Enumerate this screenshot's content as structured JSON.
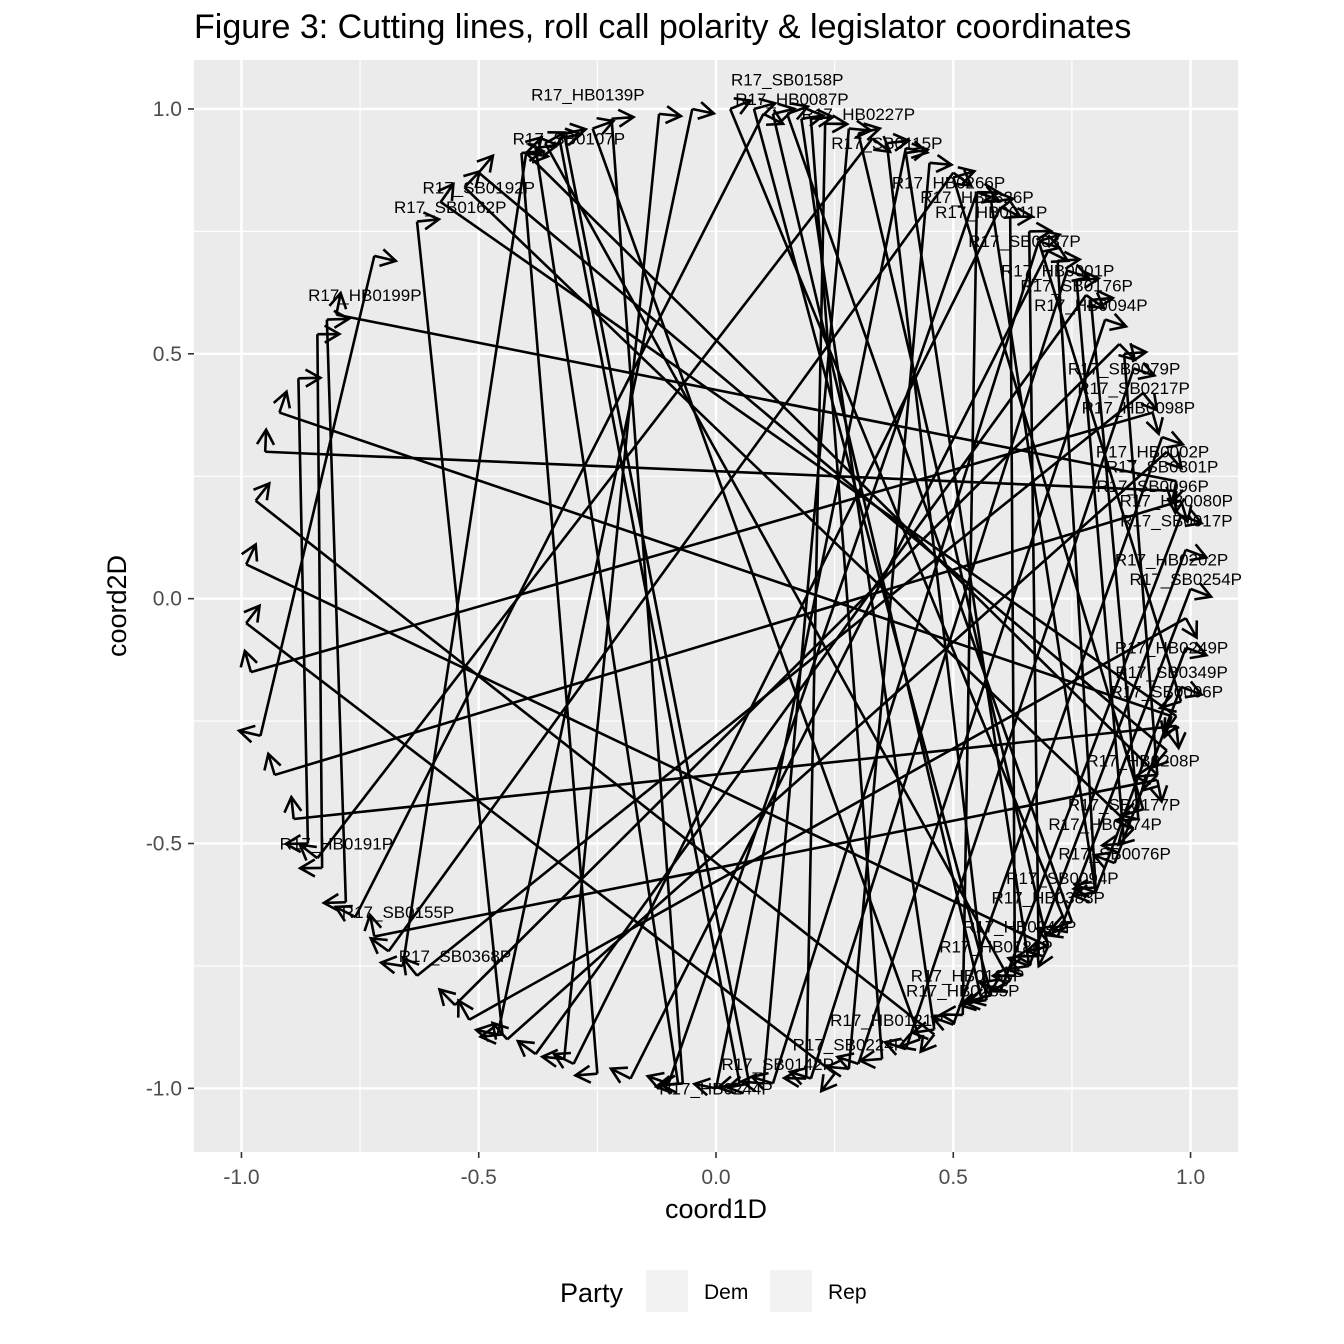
{
  "chart_data": {
    "type": "scatter",
    "title": "Figure 3: Cutting lines, roll call polarity & legislator coordinates",
    "xlabel": "coord1D",
    "ylabel": "coord2D",
    "xlim": [
      -1.1,
      1.1
    ],
    "ylim": [
      -1.13,
      1.1
    ],
    "x_ticks": [
      -1.0,
      -0.5,
      0.0,
      0.5,
      1.0
    ],
    "x_tick_labels": [
      "-1.0",
      "-0.5",
      "0.0",
      "0.5",
      "1.0"
    ],
    "y_ticks": [
      -1.0,
      -0.5,
      0.0,
      0.5,
      1.0
    ],
    "y_tick_labels": [
      "-1.0",
      "-0.5",
      "0.0",
      "0.5",
      "1.0"
    ],
    "grid": true,
    "panel_background": "#ebebeb",
    "grid_color": "#ffffff",
    "line_color": "#000000",
    "legend": {
      "title": "Party",
      "position": "bottom",
      "items": [
        {
          "label": "Dem",
          "color": "#f2f2f2"
        },
        {
          "label": "Rep",
          "color": "#f2f2f2"
        }
      ]
    },
    "cutting_lines": [
      {
        "from": [
          0.15,
          0.99
        ],
        "to": [
          0.75,
          -0.66
        ]
      },
      {
        "from": [
          0.03,
          1.0
        ],
        "to": [
          0.74,
          -0.67
        ]
      },
      {
        "from": [
          -0.38,
          0.92
        ],
        "to": [
          -0.08,
          -0.99
        ]
      },
      {
        "from": [
          -0.33,
          0.94
        ],
        "to": [
          0.05,
          -0.99
        ]
      },
      {
        "from": [
          -0.32,
          0.95
        ],
        "to": [
          0.07,
          -0.99
        ]
      },
      {
        "from": [
          -0.41,
          0.91
        ],
        "to": [
          -0.25,
          -0.97
        ]
      },
      {
        "from": [
          0.2,
          0.98
        ],
        "to": [
          0.35,
          -0.94
        ]
      },
      {
        "from": [
          0.08,
          1.0
        ],
        "to": [
          0.58,
          -0.81
        ]
      },
      {
        "from": [
          0.23,
          0.97
        ],
        "to": [
          0.19,
          -0.98
        ]
      },
      {
        "from": [
          0.28,
          0.96
        ],
        "to": [
          0.1,
          -0.99
        ]
      },
      {
        "from": [
          0.45,
          0.89
        ],
        "to": [
          0.28,
          -0.96
        ]
      },
      {
        "from": [
          0.55,
          0.83
        ],
        "to": [
          0.52,
          -0.85
        ]
      },
      {
        "from": [
          0.62,
          0.78
        ],
        "to": [
          0.63,
          -0.77
        ]
      },
      {
        "from": [
          0.66,
          0.75
        ],
        "to": [
          0.68,
          -0.73
        ]
      },
      {
        "from": [
          0.72,
          0.69
        ],
        "to": [
          0.8,
          -0.59
        ]
      },
      {
        "from": [
          0.76,
          0.65
        ],
        "to": [
          0.86,
          -0.5
        ]
      },
      {
        "from": [
          0.79,
          0.61
        ],
        "to": [
          0.89,
          -0.45
        ]
      },
      {
        "from": [
          0.86,
          0.5
        ],
        "to": [
          0.93,
          -0.36
        ]
      },
      {
        "from": [
          -0.22,
          0.98
        ],
        "to": [
          -0.07,
          -0.99
        ]
      },
      {
        "from": [
          -0.12,
          0.99
        ],
        "to": [
          -0.32,
          -0.94
        ]
      },
      {
        "from": [
          -0.05,
          1.0
        ],
        "to": [
          -0.46,
          -0.89
        ]
      },
      {
        "from": [
          -0.53,
          0.84
        ],
        "to": [
          0.88,
          -0.47
        ]
      },
      {
        "from": [
          -0.5,
          0.87
        ],
        "to": [
          0.95,
          -0.31
        ]
      },
      {
        "from": [
          -0.58,
          0.81
        ],
        "to": [
          0.97,
          -0.24
        ]
      },
      {
        "from": [
          -0.63,
          0.77
        ],
        "to": [
          -0.45,
          -0.89
        ]
      },
      {
        "from": [
          -0.8,
          0.58
        ],
        "to": [
          0.97,
          0.24
        ]
      },
      {
        "from": [
          -0.82,
          0.57
        ],
        "to": [
          -0.78,
          -0.62
        ]
      },
      {
        "from": [
          -0.84,
          0.54
        ],
        "to": [
          -0.83,
          -0.55
        ]
      },
      {
        "from": [
          -0.88,
          0.45
        ],
        "to": [
          -0.86,
          -0.5
        ]
      },
      {
        "from": [
          -0.92,
          0.38
        ],
        "to": [
          0.96,
          -0.24
        ]
      },
      {
        "from": [
          -0.95,
          0.3
        ],
        "to": [
          0.97,
          0.22
        ]
      },
      {
        "from": [
          -0.97,
          0.2
        ],
        "to": [
          0.46,
          -0.89
        ]
      },
      {
        "from": [
          -0.99,
          0.07
        ],
        "to": [
          0.7,
          -0.71
        ]
      },
      {
        "from": [
          -0.99,
          -0.05
        ],
        "to": [
          0.25,
          -0.97
        ]
      },
      {
        "from": [
          -0.98,
          -0.15
        ],
        "to": [
          0.92,
          0.38
        ]
      },
      {
        "from": [
          -0.96,
          -0.28
        ],
        "to": [
          -0.72,
          0.7
        ]
      },
      {
        "from": [
          -0.93,
          -0.36
        ],
        "to": [
          0.98,
          0.2
        ]
      },
      {
        "from": [
          -0.89,
          -0.45
        ],
        "to": [
          0.97,
          -0.26
        ]
      },
      {
        "from": [
          -0.72,
          -0.69
        ],
        "to": [
          0.93,
          -0.37
        ]
      },
      {
        "from": [
          -0.69,
          -0.72
        ],
        "to": [
          0.5,
          0.87
        ]
      },
      {
        "from": [
          -0.63,
          -0.77
        ],
        "to": [
          0.9,
          0.42
        ]
      },
      {
        "from": [
          -0.55,
          -0.83
        ],
        "to": [
          0.85,
          0.52
        ]
      },
      {
        "from": [
          -0.52,
          -0.86
        ],
        "to": [
          0.99,
          -0.04
        ]
      },
      {
        "from": [
          -0.44,
          -0.9
        ],
        "to": [
          0.95,
          0.3
        ]
      },
      {
        "from": [
          -0.38,
          -0.93
        ],
        "to": [
          0.78,
          0.62
        ]
      },
      {
        "from": [
          -0.3,
          -0.95
        ],
        "to": [
          0.6,
          0.8
        ]
      },
      {
        "from": [
          -0.18,
          -0.98
        ],
        "to": [
          0.7,
          0.71
        ]
      },
      {
        "from": [
          -0.1,
          -0.99
        ],
        "to": [
          0.55,
          0.83
        ]
      },
      {
        "from": [
          0.0,
          -1.0
        ],
        "to": [
          0.4,
          0.92
        ]
      },
      {
        "from": [
          0.12,
          -0.99
        ],
        "to": [
          0.68,
          0.73
        ]
      },
      {
        "from": [
          0.2,
          -0.98
        ],
        "to": [
          0.74,
          0.67
        ]
      },
      {
        "from": [
          0.3,
          -0.95
        ],
        "to": [
          0.82,
          0.57
        ]
      },
      {
        "from": [
          0.4,
          -0.92
        ],
        "to": [
          0.88,
          0.47
        ]
      },
      {
        "from": [
          0.5,
          -0.87
        ],
        "to": [
          0.94,
          0.33
        ]
      },
      {
        "from": [
          0.6,
          -0.8
        ],
        "to": [
          0.98,
          0.17
        ]
      },
      {
        "from": [
          0.66,
          -0.75
        ],
        "to": [
          0.99,
          0.1
        ]
      },
      {
        "from": [
          0.72,
          -0.69
        ],
        "to": [
          1.0,
          0.02
        ]
      },
      {
        "from": [
          0.8,
          -0.6
        ],
        "to": [
          0.99,
          -0.1
        ]
      },
      {
        "from": [
          0.84,
          -0.54
        ],
        "to": [
          0.98,
          -0.18
        ]
      },
      {
        "from": [
          -0.4,
          0.91
        ],
        "to": [
          0.93,
          -0.36
        ]
      },
      {
        "from": [
          -0.36,
          0.93
        ],
        "to": [
          0.62,
          -0.78
        ]
      },
      {
        "from": [
          -0.26,
          0.96
        ],
        "to": [
          0.43,
          -0.9
        ]
      },
      {
        "from": [
          -0.84,
          -0.53
        ],
        "to": [
          0.33,
          0.94
        ]
      },
      {
        "from": [
          -0.76,
          -0.65
        ],
        "to": [
          0.1,
          0.99
        ]
      },
      {
        "from": [
          -0.66,
          -0.75
        ],
        "to": [
          -0.4,
          0.91
        ]
      },
      {
        "from": [
          0.36,
          0.93
        ],
        "to": [
          0.57,
          -0.82
        ]
      },
      {
        "from": [
          0.4,
          0.91
        ],
        "to": [
          0.66,
          -0.75
        ]
      },
      {
        "from": [
          0.5,
          0.86
        ],
        "to": [
          0.9,
          -0.43
        ]
      },
      {
        "from": [
          0.58,
          0.81
        ],
        "to": [
          0.8,
          -0.6
        ]
      },
      {
        "from": [
          0.68,
          0.73
        ],
        "to": [
          0.98,
          -0.21
        ]
      },
      {
        "from": [
          0.3,
          0.95
        ],
        "to": [
          0.7,
          -0.71
        ]
      },
      {
        "from": [
          0.12,
          0.99
        ],
        "to": [
          0.56,
          -0.82
        ]
      },
      {
        "from": [
          0.18,
          0.98
        ],
        "to": [
          0.46,
          -0.88
        ]
      }
    ],
    "annotations": [
      {
        "text": "R17_SB0158P",
        "x": 0.15,
        "y": 1.06
      },
      {
        "text": "R17_HB0139P",
        "x": -0.27,
        "y": 1.03
      },
      {
        "text": "R17_HB0087P",
        "x": 0.16,
        "y": 1.02
      },
      {
        "text": "R17_HB0227P",
        "x": 0.3,
        "y": 0.99
      },
      {
        "text": "R17_SB0107P",
        "x": -0.31,
        "y": 0.94
      },
      {
        "text": "R17_SB0115P",
        "x": 0.36,
        "y": 0.93
      },
      {
        "text": "R17_HB0266P",
        "x": 0.49,
        "y": 0.85
      },
      {
        "text": "R17_SB0192P",
        "x": -0.5,
        "y": 0.84
      },
      {
        "text": "R17_HB0326P",
        "x": 0.55,
        "y": 0.82
      },
      {
        "text": "R17_SB0162P",
        "x": -0.56,
        "y": 0.8
      },
      {
        "text": "R17_HB0011P",
        "x": 0.58,
        "y": 0.79
      },
      {
        "text": "R17_SB0037P",
        "x": 0.65,
        "y": 0.73
      },
      {
        "text": "R17_HB0001P",
        "x": 0.72,
        "y": 0.67
      },
      {
        "text": "R17_SB0176P",
        "x": 0.76,
        "y": 0.64
      },
      {
        "text": "R17_HB0094P",
        "x": 0.79,
        "y": 0.6
      },
      {
        "text": "R17_HB0199P",
        "x": -0.74,
        "y": 0.62
      },
      {
        "text": "R17_SB0079P",
        "x": 0.86,
        "y": 0.47
      },
      {
        "text": "R17_SB0217P",
        "x": 0.88,
        "y": 0.43
      },
      {
        "text": "R17_HB0098P",
        "x": 0.89,
        "y": 0.39
      },
      {
        "text": "R17_HB0002P",
        "x": 0.92,
        "y": 0.3
      },
      {
        "text": "R17_SB0301P",
        "x": 0.94,
        "y": 0.27
      },
      {
        "text": "R17_SB0096P",
        "x": 0.92,
        "y": 0.23
      },
      {
        "text": "R17_HB0080P",
        "x": 0.97,
        "y": 0.2
      },
      {
        "text": "R17_SB0017P",
        "x": 0.97,
        "y": 0.16
      },
      {
        "text": "R17_HB0202P",
        "x": 0.96,
        "y": 0.08
      },
      {
        "text": "R17_SB0254P",
        "x": 0.99,
        "y": 0.04
      },
      {
        "text": "R17_HB0249P",
        "x": 0.96,
        "y": -0.1
      },
      {
        "text": "R17_SB0349P",
        "x": 0.96,
        "y": -0.15
      },
      {
        "text": "R17_SB0006P",
        "x": 0.95,
        "y": -0.19
      },
      {
        "text": "R17_HB0208P",
        "x": 0.9,
        "y": -0.33
      },
      {
        "text": "R17_SB0177P",
        "x": 0.86,
        "y": -0.42
      },
      {
        "text": "R17_HB0474P",
        "x": 0.82,
        "y": -0.46
      },
      {
        "text": "R17_SB0076P",
        "x": 0.84,
        "y": -0.52
      },
      {
        "text": "R17_SB0094P",
        "x": 0.73,
        "y": -0.57
      },
      {
        "text": "R17_HB0383P",
        "x": 0.7,
        "y": -0.61
      },
      {
        "text": "R17_HB0244P",
        "x": 0.64,
        "y": -0.67
      },
      {
        "text": "R17_HB0184P",
        "x": 0.59,
        "y": -0.71
      },
      {
        "text": "R17_HB0166P",
        "x": 0.53,
        "y": -0.77
      },
      {
        "text": "R17_HB0285P",
        "x": 0.52,
        "y": -0.8
      },
      {
        "text": "R17_HB0121P",
        "x": 0.36,
        "y": -0.86
      },
      {
        "text": "R17_SB0224P",
        "x": 0.28,
        "y": -0.91
      },
      {
        "text": "R17_SB0142P",
        "x": 0.13,
        "y": -0.95
      },
      {
        "text": "R17_HB0244P",
        "x": 0.0,
        "y": -1.0
      },
      {
        "text": "R17_HB0191P",
        "x": -0.8,
        "y": -0.5
      },
      {
        "text": "R17_SB0155P",
        "x": -0.67,
        "y": -0.64
      },
      {
        "text": "R17_SB0368P",
        "x": -0.55,
        "y": -0.73
      }
    ]
  }
}
